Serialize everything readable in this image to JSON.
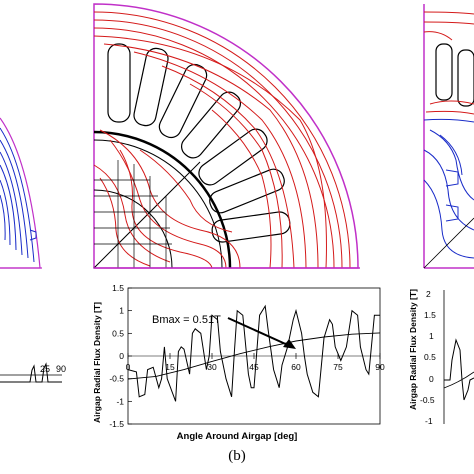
{
  "figure": {
    "caption": "(b)",
    "left_partial_ticks": [
      "25",
      "90"
    ],
    "right_partial_ylabel": "Airgap Radial Flux Density [T]"
  },
  "chart_data": {
    "type": "line",
    "xlabel": "Angle Around Airgap [deg]",
    "ylabel": "Airgap Radial Flux Density [T]",
    "xlim": [
      0,
      90
    ],
    "ylim": [
      -1.5,
      1.5
    ],
    "xticks": [
      0,
      15,
      30,
      45,
      60,
      75,
      90
    ],
    "yticks": [
      -1.5,
      -1.0,
      -0.5,
      0.0,
      0.5,
      1.0,
      1.5
    ],
    "ytick_labels": [
      "-1.5",
      "-1",
      "-0.5",
      "0",
      "0.5",
      "1",
      "1.5"
    ],
    "annotation": "Bmax = 0.51T",
    "series": [
      {
        "x": [
          0,
          3,
          4,
          6,
          7,
          9,
          11,
          12,
          13,
          14,
          17,
          18,
          19,
          20,
          22,
          23,
          24,
          26,
          28,
          29,
          30,
          32,
          33,
          35,
          37,
          38,
          39,
          41,
          43,
          44,
          45,
          47,
          49,
          50,
          52,
          54,
          55,
          57,
          59,
          60,
          62,
          63,
          64,
          66,
          68,
          70,
          72,
          73,
          74,
          76,
          78,
          80,
          82,
          83,
          85,
          86,
          88,
          90
        ],
        "y": [
          -0.3,
          -0.35,
          -0.9,
          -0.85,
          -0.3,
          -0.25,
          -0.7,
          -0.5,
          0.2,
          -0.5,
          -1.0,
          0.1,
          0.2,
          0.15,
          -0.4,
          0.5,
          0.6,
          0.5,
          -0.3,
          0.0,
          0.9,
          0.8,
          0.1,
          -0.5,
          -0.9,
          0.1,
          1.0,
          0.9,
          -0.4,
          -0.7,
          -0.7,
          0.9,
          1.1,
          0.6,
          -0.3,
          -0.7,
          -0.2,
          0.2,
          0.8,
          1.0,
          0.5,
          0.0,
          -0.4,
          -0.8,
          -0.9,
          0.4,
          0.8,
          0.7,
          0.2,
          -0.1,
          0.2,
          1.0,
          0.9,
          0.2,
          -0.3,
          -0.4,
          0.9,
          0.9
        ]
      },
      {
        "x": [
          0,
          10,
          20,
          30,
          40,
          50,
          60,
          70,
          80,
          90
        ],
        "y": [
          -0.51,
          -0.45,
          -0.3,
          -0.12,
          0.05,
          0.2,
          0.33,
          0.42,
          0.48,
          0.51
        ]
      }
    ]
  },
  "colors": {
    "field_red": "#d41a1a",
    "field_blue": "#1a2cc8",
    "boundary_magenta": "#c030c8",
    "ink": "#000000"
  }
}
